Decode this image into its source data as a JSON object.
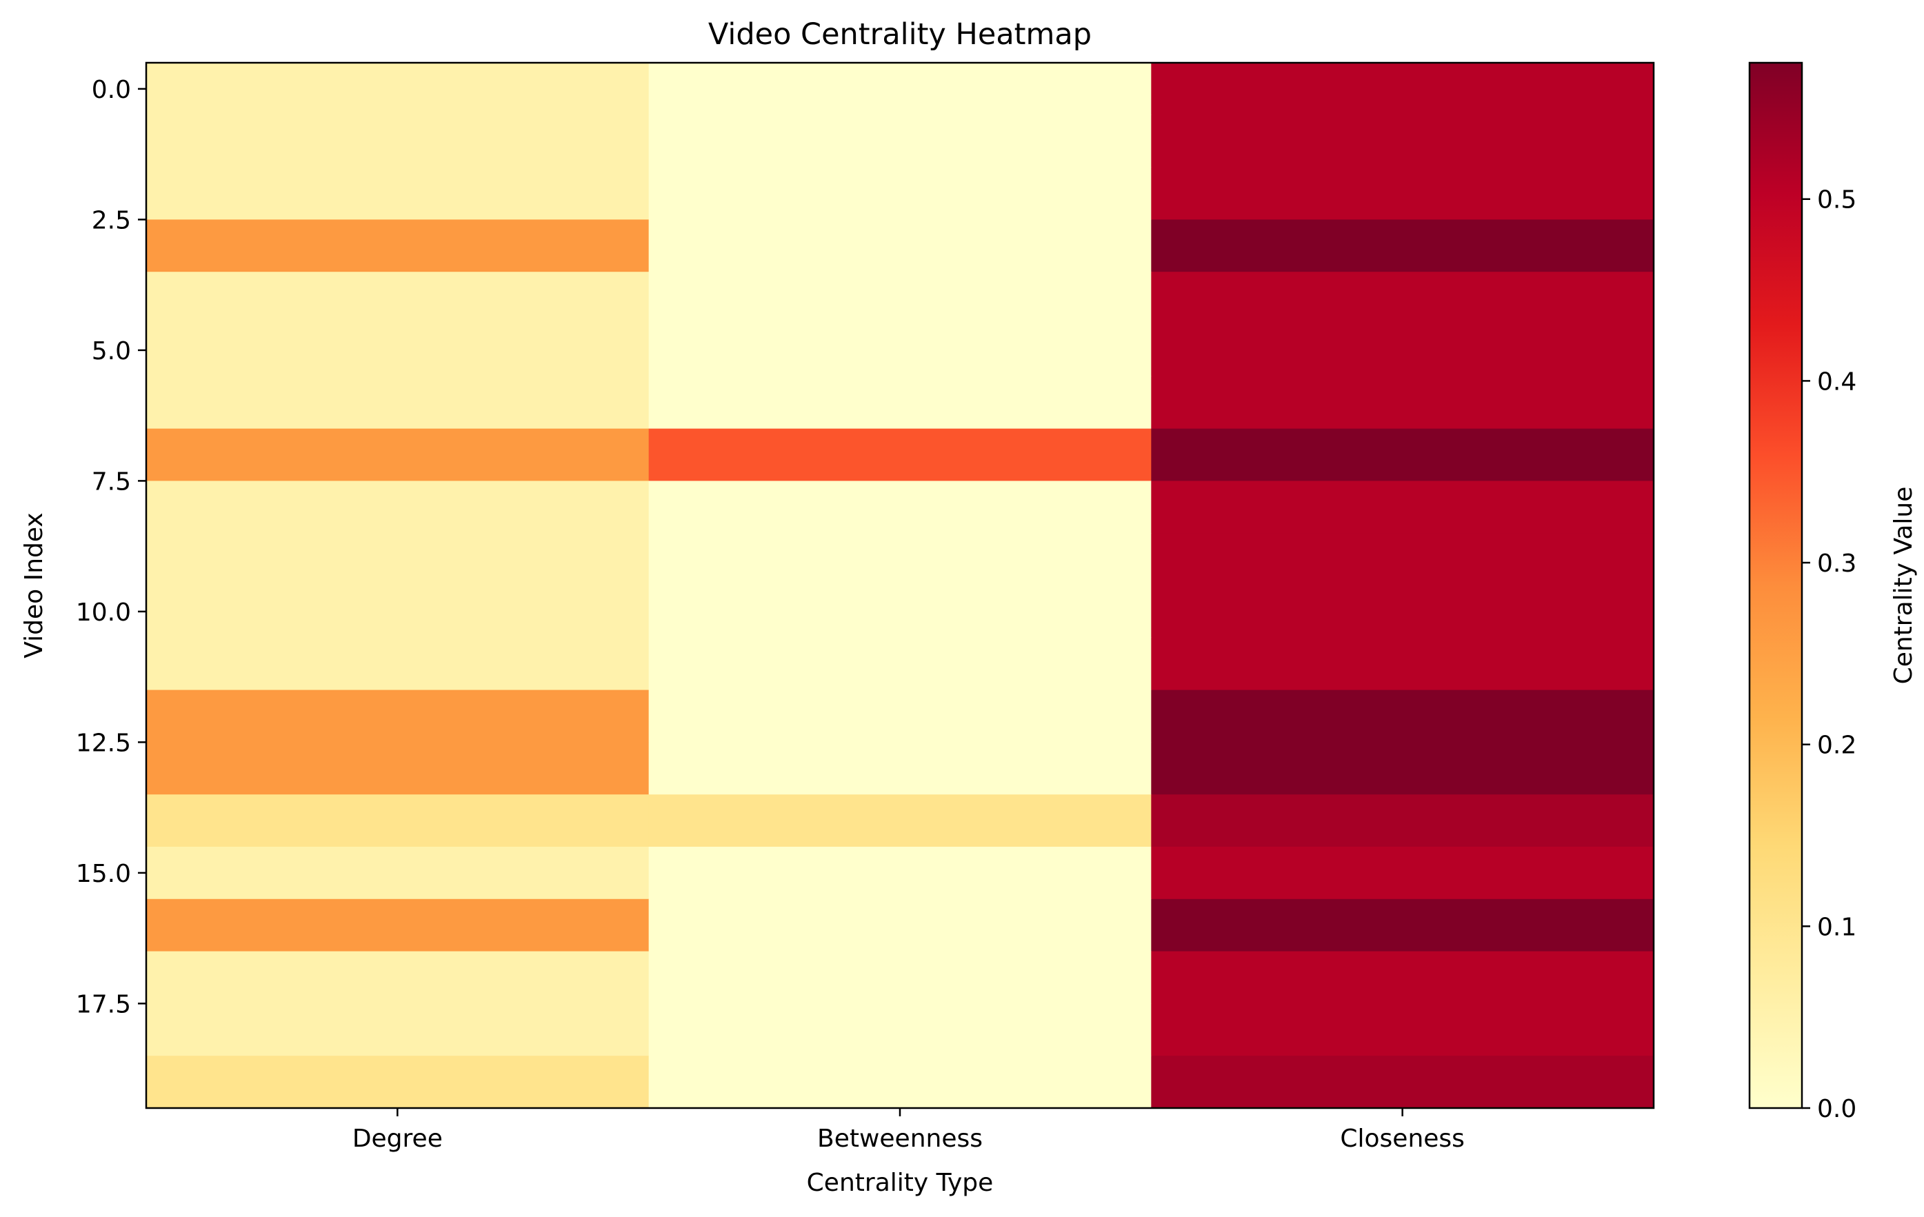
{
  "chart_data": {
    "type": "heatmap",
    "title": "Video Centrality Heatmap",
    "xlabel": "Centrality Type",
    "ylabel": "Video Index",
    "colorbar_label": "Centrality Value",
    "colormap": "YlOrRd",
    "columns": [
      "Degree",
      "Betweenness",
      "Closeness"
    ],
    "rows": [
      0,
      1,
      2,
      3,
      4,
      5,
      6,
      7,
      8,
      9,
      10,
      11,
      12,
      13,
      14,
      15,
      16,
      17,
      18,
      19
    ],
    "values": [
      [
        0.053,
        0.0,
        0.51
      ],
      [
        0.053,
        0.0,
        0.51
      ],
      [
        0.053,
        0.0,
        0.51
      ],
      [
        0.263,
        0.0,
        0.575
      ],
      [
        0.053,
        0.0,
        0.51
      ],
      [
        0.053,
        0.0,
        0.51
      ],
      [
        0.053,
        0.0,
        0.51
      ],
      [
        0.263,
        0.351,
        0.575
      ],
      [
        0.053,
        0.0,
        0.51
      ],
      [
        0.053,
        0.0,
        0.51
      ],
      [
        0.053,
        0.0,
        0.51
      ],
      [
        0.053,
        0.0,
        0.51
      ],
      [
        0.263,
        0.0,
        0.575
      ],
      [
        0.263,
        0.0,
        0.575
      ],
      [
        0.105,
        0.105,
        0.53
      ],
      [
        0.053,
        0.0,
        0.51
      ],
      [
        0.263,
        0.0,
        0.575
      ],
      [
        0.053,
        0.0,
        0.51
      ],
      [
        0.053,
        0.0,
        0.51
      ],
      [
        0.105,
        0.0,
        0.53
      ]
    ],
    "vmin": 0.0,
    "vmax": 0.575,
    "y_ticks": [
      0.0,
      2.5,
      5.0,
      7.5,
      10.0,
      12.5,
      15.0,
      17.5
    ],
    "y_tick_labels": [
      "0.0",
      "2.5",
      "5.0",
      "7.5",
      "10.0",
      "12.5",
      "15.0",
      "17.5"
    ],
    "colorbar_ticks": [
      0.0,
      0.1,
      0.2,
      0.3,
      0.4,
      0.5
    ],
    "colorbar_tick_labels": [
      "0.0",
      "0.1",
      "0.2",
      "0.3",
      "0.4",
      "0.5"
    ]
  }
}
